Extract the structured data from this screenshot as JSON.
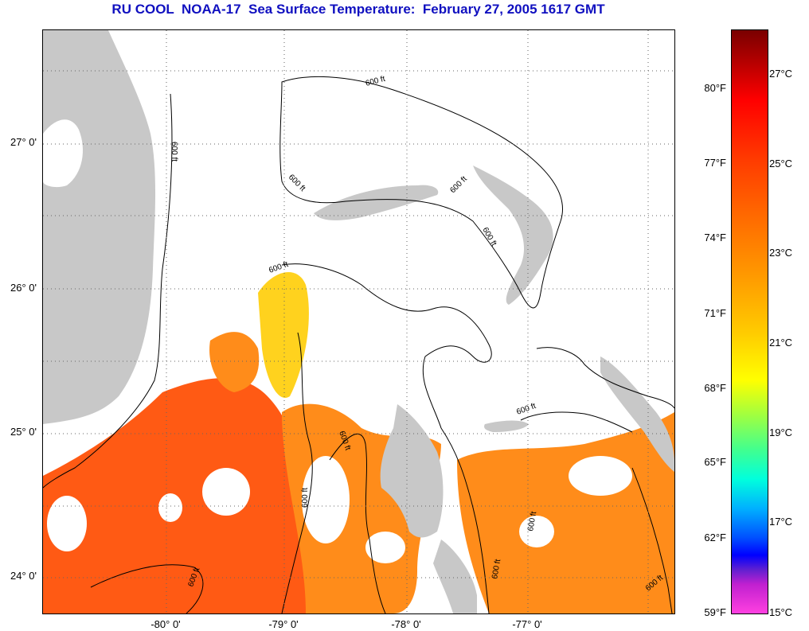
{
  "title": "RU COOL  NOAA-17  Sea Surface Temperature:  February 27, 2005 1617 GMT",
  "map": {
    "lat_ticks": [
      "27° 0'",
      "26° 0'",
      "25° 0'",
      "24° 0'"
    ],
    "lon_ticks": [
      "-80° 0'",
      "-79° 0'",
      "-78° 0'",
      "-77° 0'"
    ],
    "contour_label": "600 ft",
    "colors": {
      "land": "#c8c8c8",
      "cloud": "#ffffff",
      "warm_water": "#ff5a14",
      "orange_water": "#ff8c1a",
      "yellow_water": "#ffd21e"
    }
  },
  "colorbar": {
    "fahrenheit_labels": [
      "80°F",
      "77°F",
      "74°F",
      "71°F",
      "68°F",
      "65°F",
      "62°F",
      "59°F"
    ],
    "celsius_labels": [
      "27°C",
      "25°C",
      "23°C",
      "21°C",
      "19°C",
      "17°C",
      "15°C"
    ]
  }
}
